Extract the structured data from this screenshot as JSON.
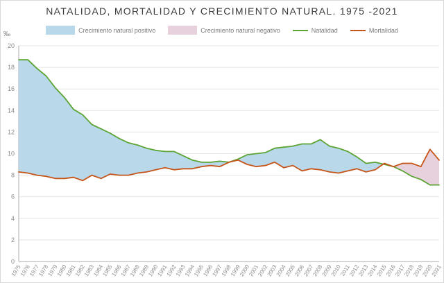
{
  "title": "NATALIDAD, MORTALIDAD Y CRECIMIENTO NATURAL. 1975 -2021",
  "legend": [
    {
      "label": "Crecimiento natural positivo",
      "type": "area",
      "color": "#b9d8ea"
    },
    {
      "label": "Crecimiento natural negativo",
      "type": "area",
      "color": "#e7d1dd"
    },
    {
      "label": "Natalidad",
      "type": "line",
      "color": "#5ca434"
    },
    {
      "label": "Mortalidad",
      "type": "line",
      "color": "#c65419"
    }
  ],
  "chart_data": {
    "type": "area",
    "title": "NATALIDAD, MORTALIDAD Y CRECIMIENTO NATURAL. 1975 -2021",
    "unit_label": "‰",
    "ylabel": "‰",
    "xlabel": "",
    "ylim": [
      0,
      20
    ],
    "ytick_step": 2,
    "grid": "horizontal",
    "legend_position": "top",
    "x_tick_rotation": -58,
    "x": [
      1975,
      1976,
      1977,
      1978,
      1979,
      1980,
      1981,
      1982,
      1983,
      1984,
      1985,
      1986,
      1987,
      1988,
      1989,
      1990,
      1991,
      1992,
      1993,
      1994,
      1995,
      1996,
      1997,
      1998,
      1999,
      2000,
      2001,
      2002,
      2003,
      2004,
      2005,
      2006,
      2007,
      2008,
      2009,
      2010,
      2011,
      2012,
      2013,
      2014,
      2015,
      2016,
      2017,
      2018,
      2019,
      2020,
      2021
    ],
    "series": [
      {
        "name": "Natalidad",
        "color": "#5ca434",
        "values": [
          18.7,
          18.7,
          17.9,
          17.2,
          16.1,
          15.2,
          14.1,
          13.6,
          12.7,
          12.3,
          11.9,
          11.4,
          11.0,
          10.8,
          10.5,
          10.3,
          10.2,
          10.2,
          9.8,
          9.4,
          9.2,
          9.2,
          9.3,
          9.2,
          9.5,
          9.9,
          10.0,
          10.1,
          10.5,
          10.6,
          10.7,
          10.9,
          10.9,
          11.3,
          10.7,
          10.5,
          10.2,
          9.7,
          9.1,
          9.2,
          9.0,
          8.8,
          8.4,
          7.9,
          7.6,
          7.1,
          7.1
        ]
      },
      {
        "name": "Mortalidad",
        "color": "#c65419",
        "values": [
          8.3,
          8.2,
          8.0,
          7.9,
          7.7,
          7.7,
          7.8,
          7.5,
          8.0,
          7.7,
          8.1,
          8.0,
          8.0,
          8.2,
          8.3,
          8.5,
          8.7,
          8.5,
          8.6,
          8.6,
          8.8,
          8.9,
          8.8,
          9.2,
          9.4,
          9.0,
          8.8,
          8.9,
          9.2,
          8.7,
          8.9,
          8.4,
          8.6,
          8.5,
          8.3,
          8.2,
          8.4,
          8.6,
          8.3,
          8.5,
          9.1,
          8.8,
          9.1,
          9.1,
          8.8,
          10.4,
          9.4
        ]
      }
    ],
    "fills": {
      "positive": {
        "label": "Crecimiento natural positivo",
        "color": "#b9d8ea"
      },
      "negative": {
        "label": "Crecimiento natural negativo",
        "color": "#e7d1dd"
      }
    }
  }
}
